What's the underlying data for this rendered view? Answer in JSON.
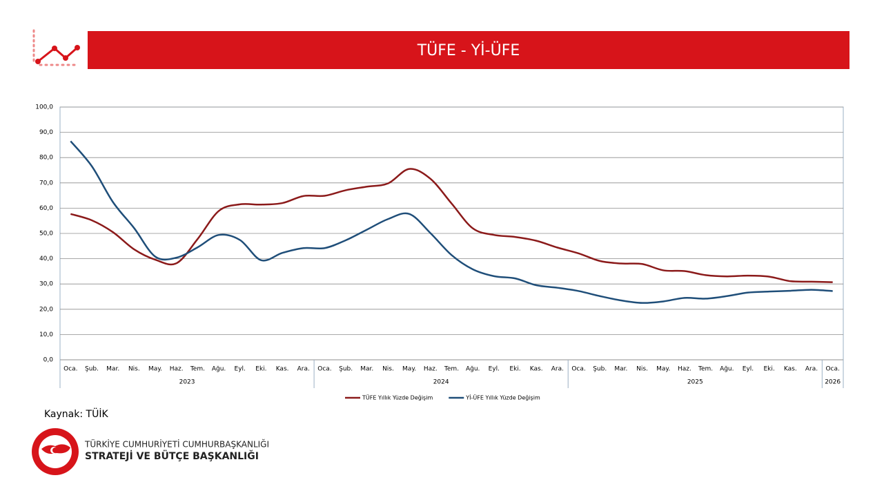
{
  "header": {
    "title": "TÜFE - Yİ-ÜFE"
  },
  "chart_data": {
    "type": "line",
    "category_groups": [
      {
        "name": "2023",
        "categories": [
          "Oca.",
          "Şub.",
          "Mar.",
          "Nis.",
          "May.",
          "Haz.",
          "Tem.",
          "Ağu.",
          "Eyl.",
          "Eki.",
          "Kas.",
          "Ara."
        ]
      },
      {
        "name": "2024",
        "categories": [
          "Oca.",
          "Şub.",
          "Mar.",
          "Nis.",
          "May.",
          "Haz.",
          "Tem.",
          "Ağu.",
          "Eyl.",
          "Eki.",
          "Kas.",
          "Ara."
        ]
      },
      {
        "name": "2025",
        "categories": [
          "Oca.",
          "Şub.",
          "Mar.",
          "Nis.",
          "May.",
          "Haz.",
          "Tem.",
          "Ağu.",
          "Eyl.",
          "Eki.",
          "Kas.",
          "Ara."
        ]
      },
      {
        "name": "2026",
        "categories": [
          "Oca."
        ]
      }
    ],
    "series": [
      {
        "name": "TÜFE Yıllık Yüzde Değişim",
        "color": "#8b1a1a",
        "values": [
          57.7,
          55.2,
          50.5,
          43.7,
          39.6,
          38.2,
          47.8,
          58.9,
          61.5,
          61.4,
          62.0,
          64.8,
          64.9,
          67.1,
          68.5,
          69.8,
          75.5,
          71.6,
          61.8,
          52.0,
          49.4,
          48.6,
          47.1,
          44.4,
          42.1,
          39.1,
          38.1,
          37.9,
          35.4,
          35.1,
          33.5,
          33.0,
          33.3,
          32.9,
          31.1,
          30.9,
          30.7
        ]
      },
      {
        "name": "Yİ-ÜFE Yıllık Yüzde Değişim",
        "color": "#1f4e79",
        "values": [
          86.5,
          76.6,
          62.4,
          52.1,
          40.8,
          40.4,
          44.5,
          49.4,
          47.4,
          39.4,
          42.3,
          44.2,
          44.2,
          47.3,
          51.5,
          55.7,
          57.7,
          50.1,
          41.4,
          35.8,
          33.1,
          32.2,
          29.5,
          28.5,
          27.2,
          25.2,
          23.5,
          22.5,
          23.1,
          24.5,
          24.2,
          25.2,
          26.6,
          27.0,
          27.3,
          27.7,
          27.2
        ]
      }
    ],
    "ylim": [
      0,
      100
    ],
    "yticks": [
      {
        "value": 0,
        "label": "0,0"
      },
      {
        "value": 10,
        "label": "10,0"
      },
      {
        "value": 20,
        "label": "20,0"
      },
      {
        "value": 30,
        "label": "30,0"
      },
      {
        "value": 40,
        "label": "40,0"
      },
      {
        "value": 50,
        "label": "50,0"
      },
      {
        "value": 60,
        "label": "60,0"
      },
      {
        "value": 70,
        "label": "70,0"
      },
      {
        "value": 80,
        "label": "80,0"
      },
      {
        "value": 90,
        "label": "90,0"
      },
      {
        "value": 100,
        "label": "100,0"
      }
    ],
    "grid": true,
    "legend": "bottom"
  },
  "footer": {
    "source": "Kaynak: TÜİK",
    "org_line1": "TÜRKİYE CUMHURİYETİ CUMHURBAŞKANLIĞI",
    "org_line2": "STRATEJİ VE BÜTÇE BAŞKANLIĞI"
  }
}
